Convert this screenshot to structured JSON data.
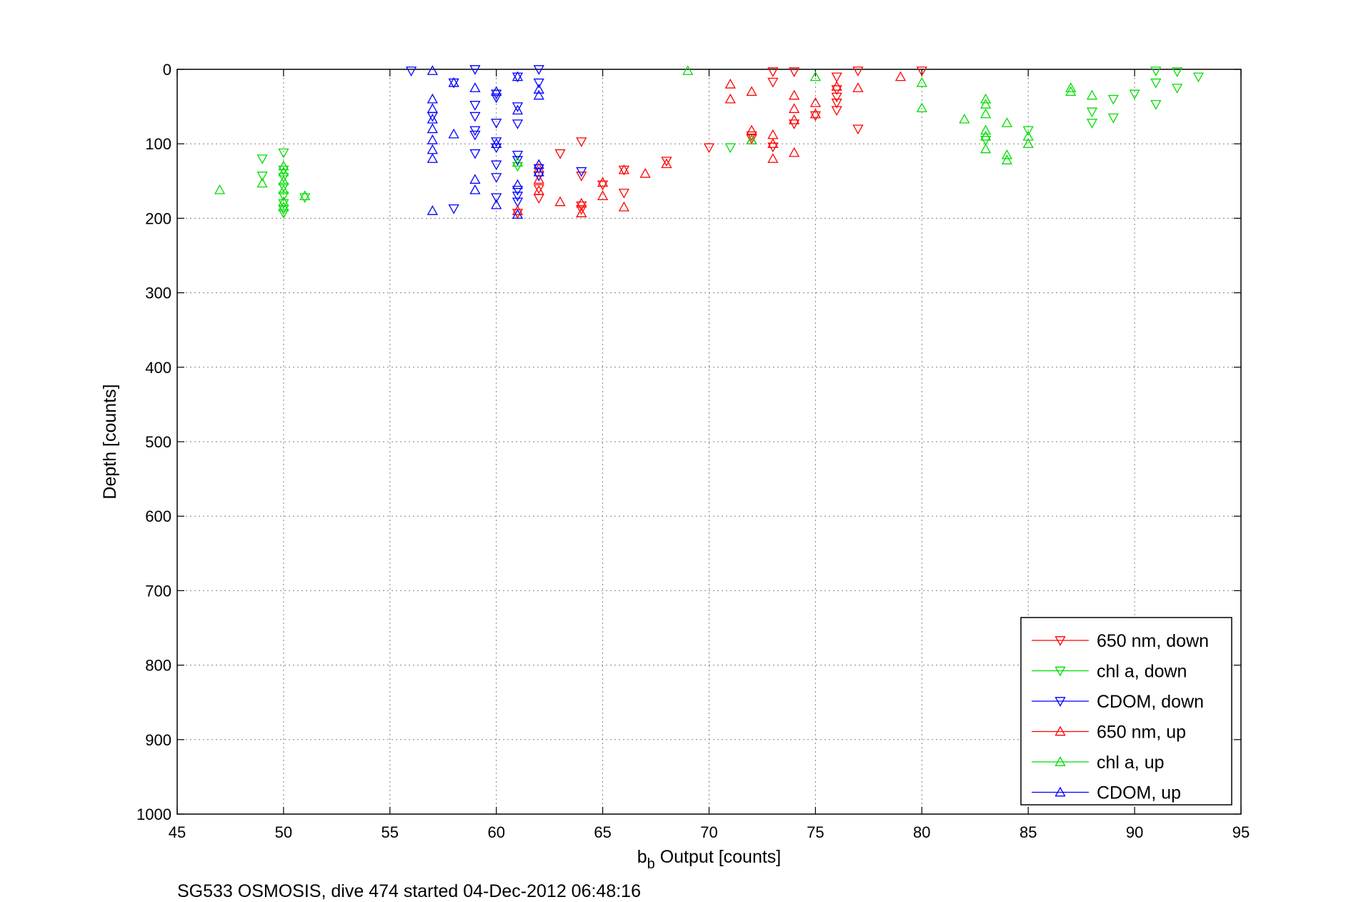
{
  "chart_data": {
    "type": "scatter",
    "xlabel_main": "b",
    "xlabel_sub": "b",
    "xlabel_rest": " Output [counts]",
    "ylabel": "Depth [counts]",
    "caption": "SG533 OSMOSIS, dive 474 started 04-Dec-2012 06:48:16",
    "xlim": [
      45,
      95
    ],
    "ylim": [
      0,
      1000
    ],
    "y_reversed": true,
    "grid": true,
    "legend_position": "bottom-right",
    "xticks": [
      45,
      50,
      55,
      60,
      65,
      70,
      75,
      80,
      85,
      90,
      95
    ],
    "yticks": [
      0,
      100,
      200,
      300,
      400,
      500,
      600,
      700,
      800,
      900,
      1000
    ],
    "series": [
      {
        "name": "650 nm, down",
        "color": "#ff0000",
        "marker": "triangle-down",
        "points": [
          [
            61,
            193
          ],
          [
            62,
            160
          ],
          [
            62,
            173
          ],
          [
            63,
            113
          ],
          [
            64,
            97
          ],
          [
            64,
            143
          ],
          [
            64,
            183
          ],
          [
            64,
            188
          ],
          [
            65,
            155
          ],
          [
            66,
            135
          ],
          [
            66,
            166
          ],
          [
            68,
            123
          ],
          [
            70,
            105
          ],
          [
            72,
            89
          ],
          [
            72,
            93
          ],
          [
            73,
            3
          ],
          [
            73,
            17
          ],
          [
            73,
            104
          ],
          [
            74,
            3
          ],
          [
            74,
            73
          ],
          [
            75,
            62
          ],
          [
            76,
            10
          ],
          [
            76,
            27
          ],
          [
            76,
            37
          ],
          [
            76,
            45
          ],
          [
            76,
            55
          ],
          [
            77,
            2
          ],
          [
            77,
            80
          ],
          [
            80,
            2
          ]
        ]
      },
      {
        "name": "chl a, down",
        "color": "#00dd00",
        "marker": "triangle-down",
        "points": [
          [
            49,
            120
          ],
          [
            49,
            143
          ],
          [
            50,
            112
          ],
          [
            50,
            135
          ],
          [
            50,
            145
          ],
          [
            50,
            158
          ],
          [
            50,
            170
          ],
          [
            50,
            180
          ],
          [
            50,
            188
          ],
          [
            50,
            193
          ],
          [
            51,
            172
          ],
          [
            61,
            130
          ],
          [
            71,
            105
          ],
          [
            83,
            95
          ],
          [
            85,
            82
          ],
          [
            88,
            57
          ],
          [
            88,
            72
          ],
          [
            89,
            40
          ],
          [
            89,
            65
          ],
          [
            90,
            33
          ],
          [
            91,
            2
          ],
          [
            91,
            18
          ],
          [
            91,
            47
          ],
          [
            92,
            3
          ],
          [
            92,
            25
          ],
          [
            93,
            10
          ]
        ]
      },
      {
        "name": "CDOM, down",
        "color": "#0000ff",
        "marker": "triangle-down",
        "points": [
          [
            56,
            2
          ],
          [
            57,
            63
          ],
          [
            58,
            18
          ],
          [
            58,
            187
          ],
          [
            59,
            0
          ],
          [
            59,
            48
          ],
          [
            59,
            63
          ],
          [
            59,
            82
          ],
          [
            59,
            88
          ],
          [
            59,
            113
          ],
          [
            60,
            33
          ],
          [
            60,
            38
          ],
          [
            60,
            72
          ],
          [
            60,
            97
          ],
          [
            60,
            105
          ],
          [
            60,
            128
          ],
          [
            60,
            145
          ],
          [
            60,
            172
          ],
          [
            61,
            10
          ],
          [
            61,
            50
          ],
          [
            61,
            73
          ],
          [
            61,
            115
          ],
          [
            61,
            122
          ],
          [
            61,
            162
          ],
          [
            61,
            170
          ],
          [
            61,
            178
          ],
          [
            62,
            0
          ],
          [
            62,
            133
          ],
          [
            62,
            143
          ],
          [
            62,
            18
          ],
          [
            64,
            137
          ]
        ]
      },
      {
        "name": "650 nm, up",
        "color": "#ff0000",
        "marker": "triangle-up",
        "points": [
          [
            61,
            190
          ],
          [
            62,
            133
          ],
          [
            62,
            148
          ],
          [
            62,
            163
          ],
          [
            63,
            178
          ],
          [
            64,
            180
          ],
          [
            64,
            193
          ],
          [
            65,
            152
          ],
          [
            65,
            170
          ],
          [
            66,
            135
          ],
          [
            66,
            185
          ],
          [
            67,
            140
          ],
          [
            68,
            127
          ],
          [
            71,
            20
          ],
          [
            71,
            40
          ],
          [
            72,
            30
          ],
          [
            72,
            82
          ],
          [
            72,
            95
          ],
          [
            73,
            88
          ],
          [
            73,
            100
          ],
          [
            73,
            120
          ],
          [
            74,
            35
          ],
          [
            74,
            53
          ],
          [
            74,
            68
          ],
          [
            74,
            112
          ],
          [
            75,
            45
          ],
          [
            75,
            60
          ],
          [
            76,
            23
          ],
          [
            77,
            25
          ],
          [
            79,
            10
          ]
        ]
      },
      {
        "name": "chl a, up",
        "color": "#00dd00",
        "marker": "triangle-up",
        "points": [
          [
            47,
            162
          ],
          [
            49,
            153
          ],
          [
            50,
            130
          ],
          [
            50,
            138
          ],
          [
            50,
            150
          ],
          [
            50,
            162
          ],
          [
            50,
            178
          ],
          [
            50,
            185
          ],
          [
            51,
            170
          ],
          [
            61,
            125
          ],
          [
            69,
            2
          ],
          [
            72,
            95
          ],
          [
            75,
            10
          ],
          [
            80,
            18
          ],
          [
            80,
            52
          ],
          [
            82,
            67
          ],
          [
            83,
            40
          ],
          [
            83,
            47
          ],
          [
            83,
            60
          ],
          [
            83,
            82
          ],
          [
            83,
            90
          ],
          [
            83,
            107
          ],
          [
            84,
            72
          ],
          [
            84,
            115
          ],
          [
            84,
            122
          ],
          [
            85,
            90
          ],
          [
            85,
            100
          ],
          [
            87,
            25
          ],
          [
            87,
            30
          ],
          [
            88,
            35
          ]
        ]
      },
      {
        "name": "CDOM, up",
        "color": "#0000ff",
        "marker": "triangle-up",
        "points": [
          [
            57,
            2
          ],
          [
            57,
            40
          ],
          [
            57,
            53
          ],
          [
            57,
            67
          ],
          [
            57,
            80
          ],
          [
            57,
            95
          ],
          [
            57,
            108
          ],
          [
            57,
            120
          ],
          [
            57,
            190
          ],
          [
            58,
            18
          ],
          [
            58,
            87
          ],
          [
            59,
            25
          ],
          [
            59,
            148
          ],
          [
            59,
            162
          ],
          [
            60,
            30
          ],
          [
            60,
            100
          ],
          [
            60,
            182
          ],
          [
            61,
            10
          ],
          [
            61,
            55
          ],
          [
            61,
            155
          ],
          [
            61,
            195
          ],
          [
            62,
            27
          ],
          [
            62,
            35
          ],
          [
            62,
            128
          ],
          [
            62,
            138
          ]
        ]
      }
    ]
  }
}
